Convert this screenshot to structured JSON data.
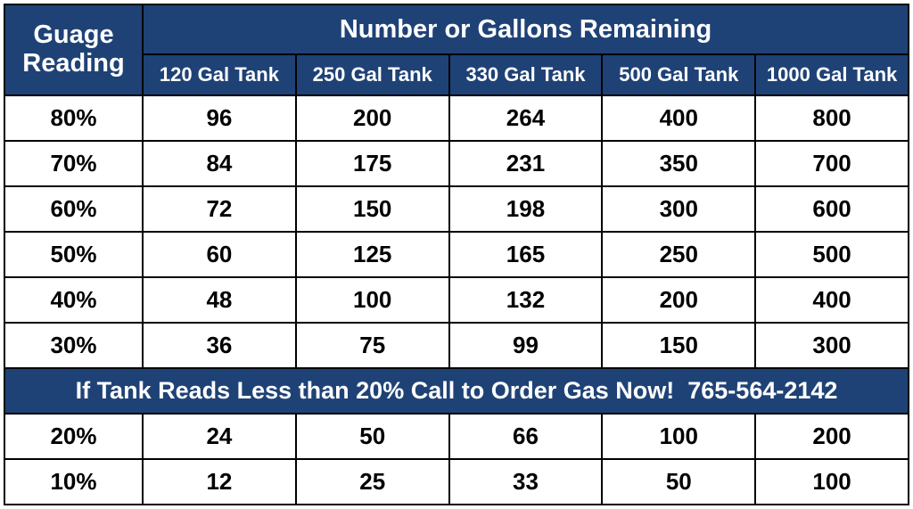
{
  "colors": {
    "header_bg": "#1f4276",
    "header_fg": "#ffffff",
    "cell_bg": "#ffffff",
    "cell_fg": "#000000",
    "border": "#000000"
  },
  "typography": {
    "title_fontsize_pt": 22,
    "tank_header_fontsize_pt": 17,
    "cell_fontsize_pt": 20,
    "banner_fontsize_pt": 20,
    "font_family": "Myriad Pro / Segoe UI / Arial"
  },
  "header": {
    "gauge_line1": "Guage",
    "gauge_line2": "Reading",
    "gallons_title": "Number or Gallons Remaining",
    "tank_cols": [
      "120 Gal Tank",
      "250 Gal Tank",
      "330 Gal Tank",
      "500 Gal Tank",
      "1000 Gal Tank"
    ]
  },
  "rows_top": [
    {
      "gauge": "80%",
      "vals": [
        "96",
        "200",
        "264",
        "400",
        "800"
      ]
    },
    {
      "gauge": "70%",
      "vals": [
        "84",
        "175",
        "231",
        "350",
        "700"
      ]
    },
    {
      "gauge": "60%",
      "vals": [
        "72",
        "150",
        "198",
        "300",
        "600"
      ]
    },
    {
      "gauge": "50%",
      "vals": [
        "60",
        "125",
        "165",
        "250",
        "500"
      ]
    },
    {
      "gauge": "40%",
      "vals": [
        "48",
        "100",
        "132",
        "200",
        "400"
      ]
    },
    {
      "gauge": "30%",
      "vals": [
        "36",
        "75",
        "99",
        "150",
        "300"
      ]
    }
  ],
  "banner": "If Tank Reads Less than 20% Call to Order Gas Now!  765-564-2142",
  "rows_bottom": [
    {
      "gauge": "20%",
      "vals": [
        "24",
        "50",
        "66",
        "100",
        "200"
      ]
    },
    {
      "gauge": "10%",
      "vals": [
        "12",
        "25",
        "33",
        "50",
        "100"
      ]
    }
  ]
}
